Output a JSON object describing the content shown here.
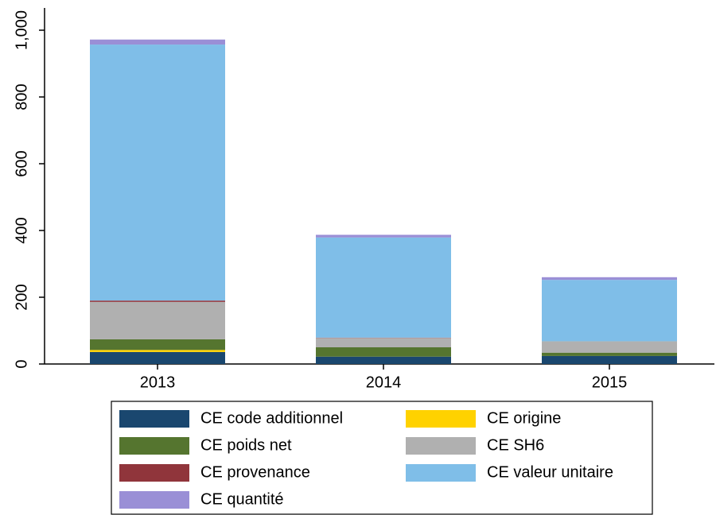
{
  "chart_data": {
    "type": "stacked_bar",
    "categories": [
      "2013",
      "2014",
      "2015"
    ],
    "series": [
      {
        "name": "CE code additionnel",
        "color": "#1a476f",
        "values": [
          36,
          22,
          24
        ]
      },
      {
        "name": "CE origine",
        "color": "#ffd200",
        "values": [
          6,
          0,
          0
        ]
      },
      {
        "name": "CE poids net",
        "color": "#55752f",
        "values": [
          32,
          28,
          10
        ]
      },
      {
        "name": "CE SH6",
        "color": "#b0b0b0",
        "values": [
          112,
          28,
          34
        ]
      },
      {
        "name": "CE provenance",
        "color": "#90353b",
        "values": [
          4,
          1,
          0
        ]
      },
      {
        "name": "CE valeur unitaire",
        "color": "#7fbee8",
        "values": [
          767,
          300,
          184
        ]
      },
      {
        "name": "CE quantité",
        "color": "#9a8fd6",
        "values": [
          15,
          8,
          8
        ]
      }
    ],
    "ylim": [
      0,
      1000
    ],
    "yticks": [
      0,
      200,
      400,
      600,
      800,
      {
        "value": 1000,
        "label": "1,000"
      }
    ],
    "legend": "bottom"
  }
}
